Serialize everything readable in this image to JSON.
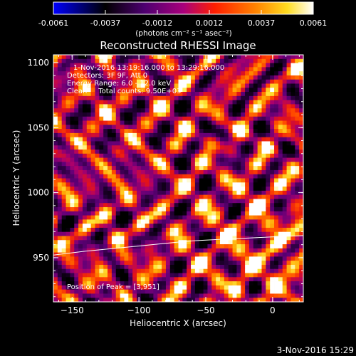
{
  "colorbar": {
    "ticks": [
      "-0.0061",
      "-0.0037",
      "-0.0012",
      "0.0012",
      "0.0037",
      "0.0061"
    ],
    "units_label": "(photons cm⁻² s⁻¹ asec⁻²)",
    "colors": [
      "#0000ff",
      "#000000",
      "#5a006e",
      "#c0007a",
      "#ff2000",
      "#ff8a00",
      "#ffe020",
      "#ffffff"
    ]
  },
  "chart_data": {
    "type": "heatmap",
    "title": "Reconstructed RHESSI Image",
    "xlabel": "Heliocentric X (arcsec)",
    "ylabel": "Heliocentric Y (arcsec)",
    "xlim": [
      -164,
      23
    ],
    "ylim": [
      916,
      1106
    ],
    "xticks": [
      -150,
      -100,
      -50,
      0
    ],
    "yticks": [
      950,
      1000,
      1050,
      1100
    ],
    "annotations": [
      "1-Nov-2016 13:19:16.000 to 13:29:16.000",
      "Detectors: 3F 9F, Att 0",
      "Energy Range: 6.0 - 12.0 keV",
      "Clean     Total counts: 9.50E+03"
    ],
    "peak_label": "Position of Peak = [3,951]",
    "peak_position": [
      3,
      951
    ],
    "limb_curve": {
      "x": [
        -164,
        -140,
        -120,
        -100,
        -80,
        -60,
        -40,
        -20,
        0,
        23
      ],
      "y": [
        952,
        955,
        957,
        959,
        961,
        963,
        964,
        965,
        966,
        967
      ]
    },
    "image_grid": {
      "cols": 60,
      "rows": 60,
      "value_range": [
        -0.0061,
        0.0061
      ]
    },
    "timestamp": "3-Nov-2016 15:29"
  }
}
